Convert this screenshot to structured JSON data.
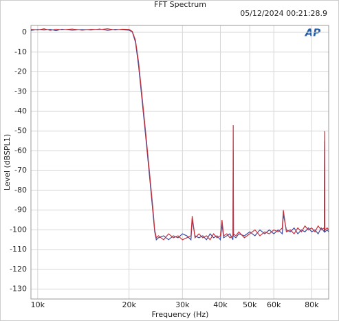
{
  "chart_data": {
    "type": "line",
    "title": "FFT Spectrum",
    "subtitle": "05/12/2024 00:21:28.9",
    "logo": "AP",
    "x_label": "Frequency (Hz)",
    "y_label": "Level (dBSPL1)",
    "log_x": true,
    "grid": true,
    "xlim": [
      9500,
      91000
    ],
    "ylim": [
      -135,
      3.5
    ],
    "xticks": [
      {
        "value": 10000,
        "label": "10k"
      },
      {
        "value": 20000,
        "label": "20k"
      },
      {
        "value": 30000,
        "label": "30k"
      },
      {
        "value": 40000,
        "label": "40k"
      },
      {
        "value": 50000,
        "label": "50k"
      },
      {
        "value": 60000,
        "label": "60k"
      },
      {
        "value": 80000,
        "label": "80k"
      }
    ],
    "yticks": [
      0,
      -10,
      -20,
      -30,
      -40,
      -50,
      -60,
      -70,
      -80,
      -90,
      -100,
      -110,
      -120,
      -130
    ],
    "x": [
      9500,
      10000,
      10500,
      11000,
      11500,
      12000,
      13000,
      14000,
      15000,
      16000,
      17000,
      18000,
      19000,
      20000,
      20500,
      21000,
      21500,
      22000,
      22500,
      23000,
      23500,
      24000,
      24300,
      24600,
      25000,
      26000,
      27000,
      28000,
      29000,
      30000,
      31000,
      32000,
      32300,
      33000,
      34000,
      35000,
      36000,
      37000,
      38000,
      39000,
      40000,
      40500,
      41000,
      42000,
      43000,
      44000,
      44100,
      44200,
      45000,
      46000,
      48000,
      50000,
      52000,
      54000,
      56000,
      58000,
      60000,
      62000,
      64000,
      64500,
      66000,
      68000,
      70000,
      72000,
      74000,
      76000,
      78000,
      80000,
      82000,
      84000,
      86000,
      88000,
      88200,
      88400,
      90000,
      91000
    ],
    "series": [
      {
        "color": "#3b4a9c",
        "values": [
          1.0,
          1.4,
          1.2,
          1.5,
          0.9,
          1.6,
          1.1,
          1.4,
          1.2,
          1.7,
          1.0,
          1.5,
          1.3,
          1.1,
          0.2,
          -5,
          -17,
          -32,
          -47,
          -62,
          -77,
          -92,
          -101,
          -105,
          -104,
          -103,
          -105,
          -103,
          -104,
          -102,
          -103,
          -105,
          -95,
          -103,
          -104,
          -103,
          -105,
          -102,
          -104,
          -103,
          -105,
          -97,
          -104,
          -103,
          -102,
          -105,
          -60,
          -103,
          -104,
          -102,
          -103,
          -101,
          -103,
          -100,
          -102,
          -100,
          -102,
          -100,
          -102,
          -92,
          -100,
          -101,
          -99,
          -102,
          -100,
          -101,
          -99,
          -101,
          -100,
          -102,
          -99,
          -101,
          -55,
          -101,
          -100,
          -101
        ]
      },
      {
        "color": "#c8323c",
        "values": [
          1.5,
          1.2,
          1.8,
          1.0,
          1.6,
          1.3,
          1.7,
          1.1,
          1.5,
          1.4,
          1.8,
          1.2,
          1.6,
          1.5,
          0.5,
          -4,
          -15,
          -30,
          -45,
          -60,
          -75,
          -90,
          -100,
          -104,
          -103,
          -105,
          -102,
          -104,
          -103,
          -105,
          -104,
          -103,
          -93,
          -104,
          -102,
          -104,
          -103,
          -105,
          -102,
          -104,
          -103,
          -95,
          -103,
          -102,
          -104,
          -103,
          -47,
          -102,
          -103,
          -101,
          -104,
          -102,
          -100,
          -103,
          -101,
          -102,
          -100,
          -101,
          -99,
          -90,
          -101,
          -100,
          -102,
          -99,
          -101,
          -98,
          -100,
          -99,
          -101,
          -98,
          -100,
          -99,
          -50,
          -100,
          -99,
          -100
        ]
      }
    ]
  }
}
